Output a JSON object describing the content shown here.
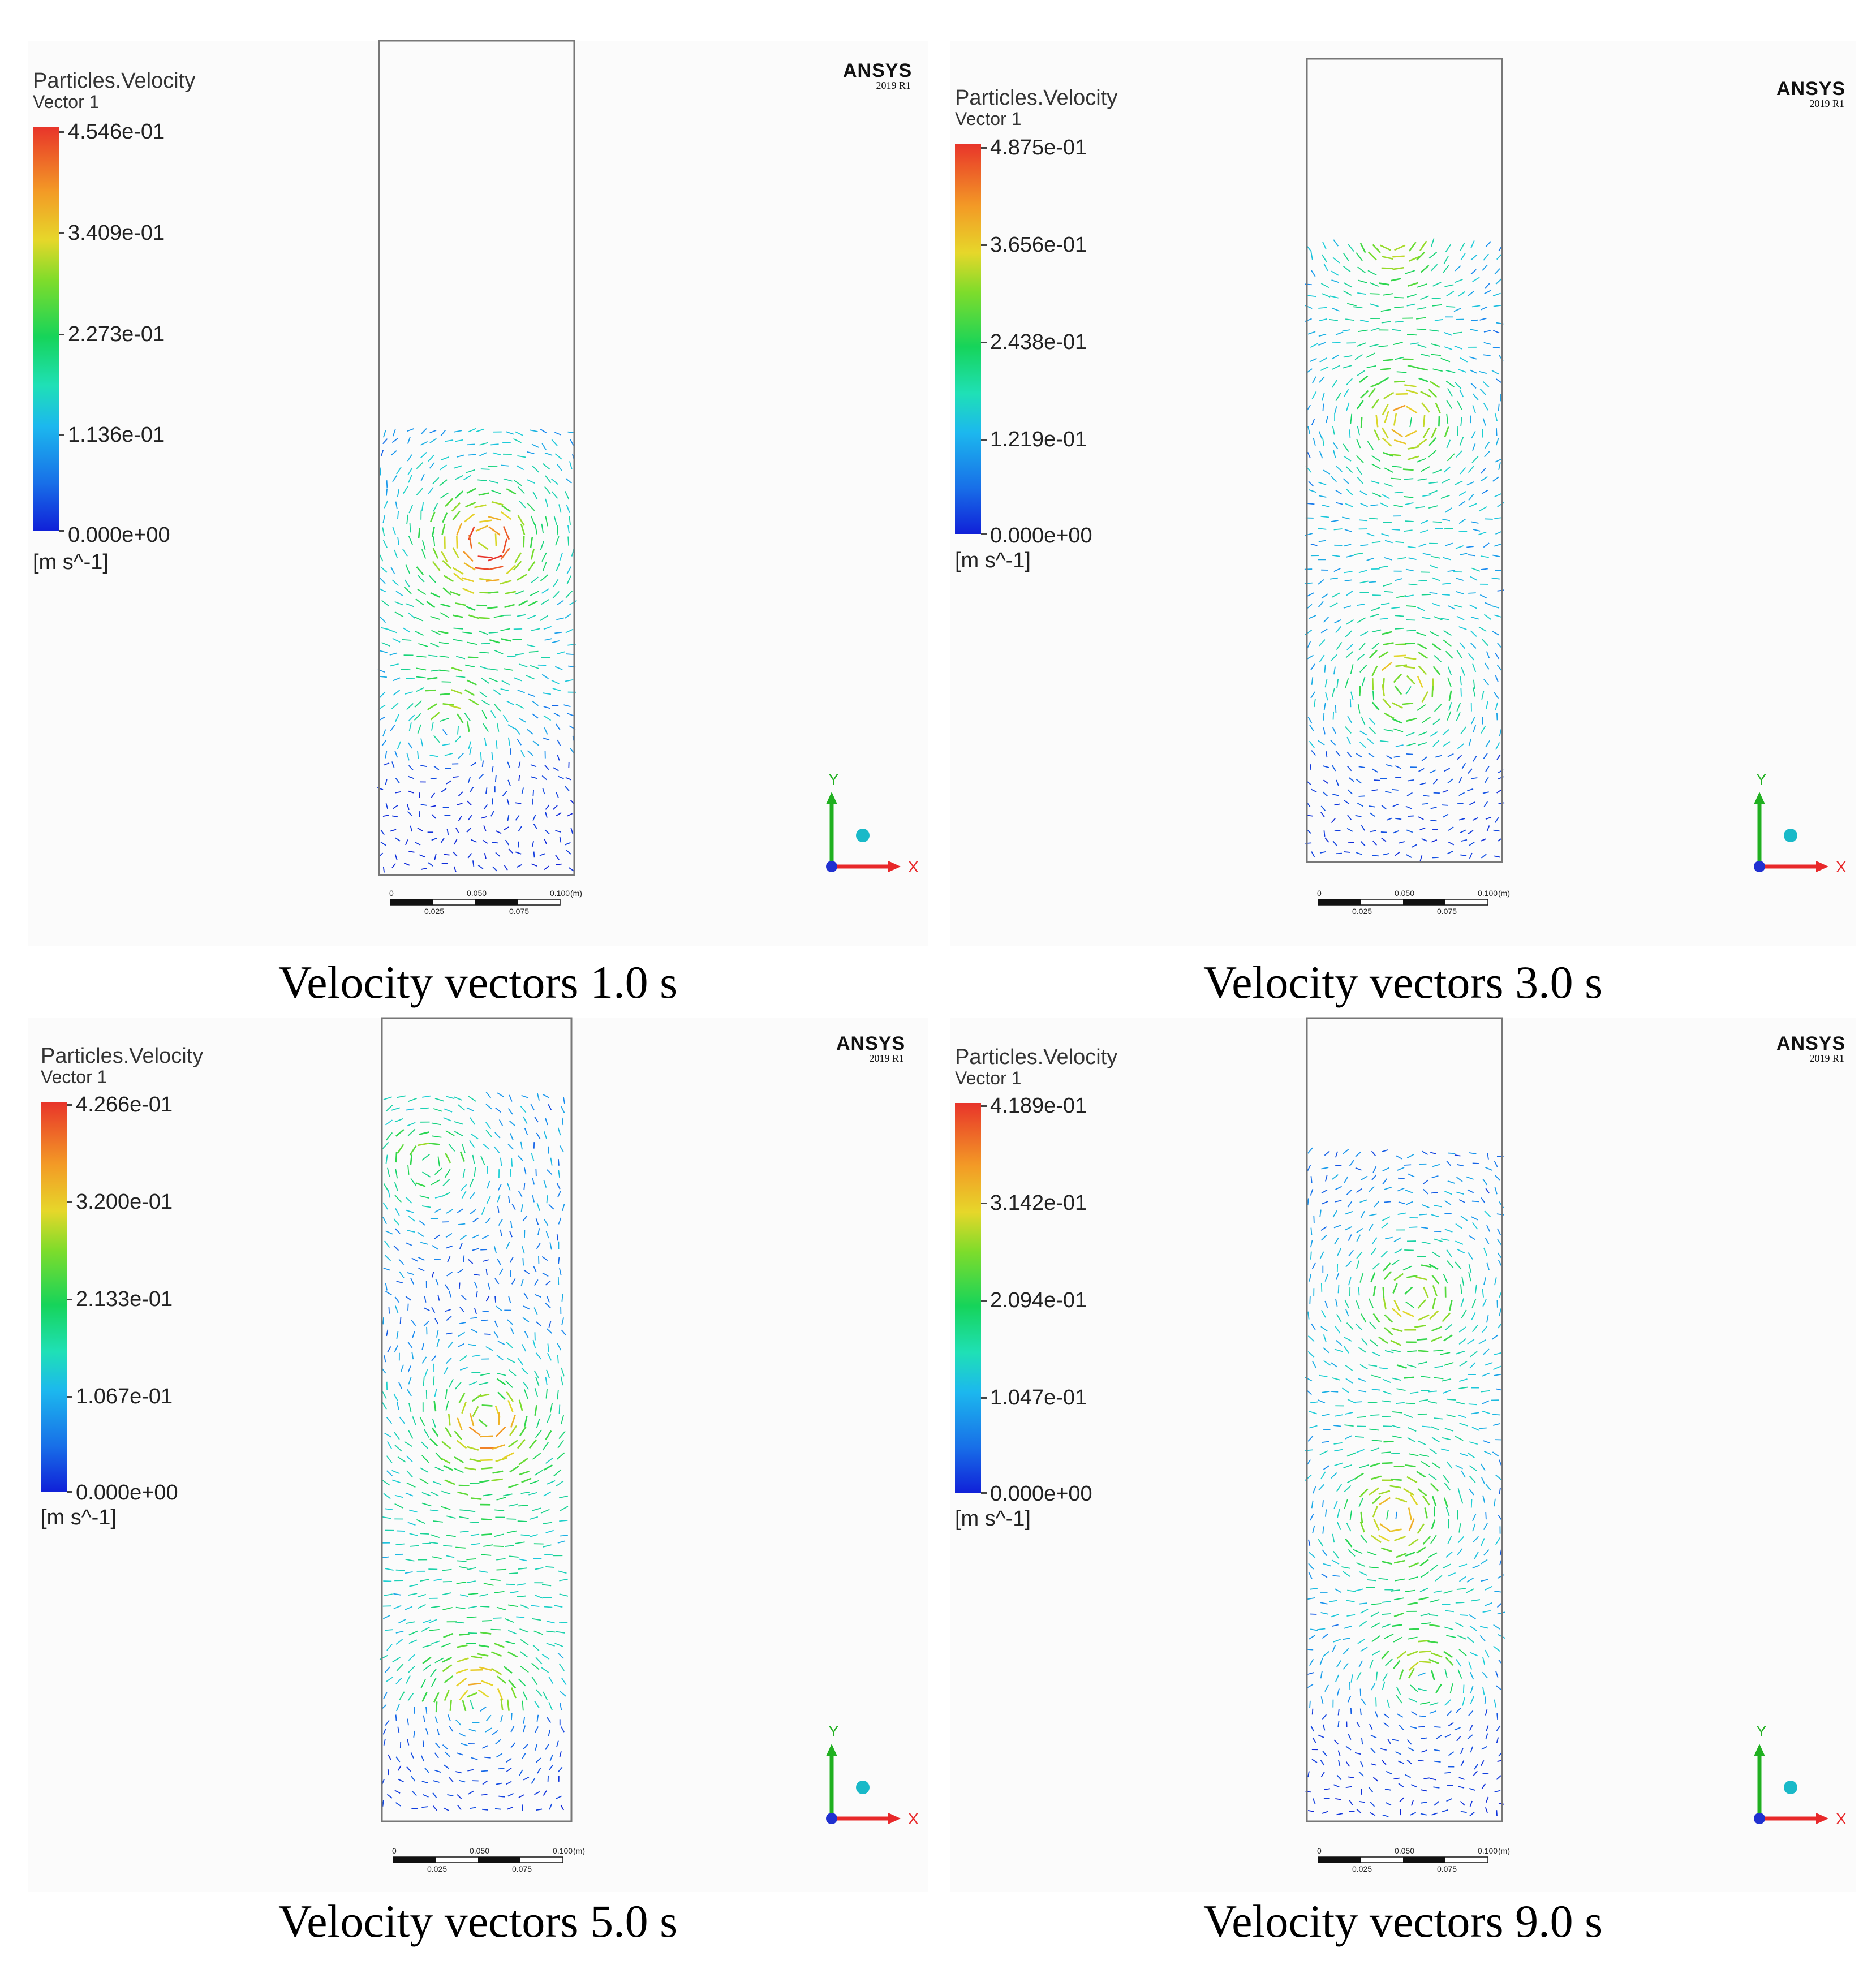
{
  "panels": [
    {
      "legend_title": "Particles.Velocity",
      "legend_sub": "Vector 1",
      "ticks": [
        "4.546e-01",
        "3.409e-01",
        "2.273e-01",
        "1.136e-01",
        "0.000e+00"
      ],
      "unit": "[m s^-1]",
      "brand": "ANSYS",
      "version": "2019 R1",
      "caption": "Velocity vectors 1.0 s",
      "scale": {
        "t0": "0",
        "t1": "0.050",
        "t2": "0.100",
        "unit": "(m)",
        "b1": "0.025",
        "b2": "0.075"
      },
      "axis": {
        "y": "Y",
        "x": "X"
      }
    },
    {
      "legend_title": "Particles.Velocity",
      "legend_sub": "Vector 1",
      "ticks": [
        "4.875e-01",
        "3.656e-01",
        "2.438e-01",
        "1.219e-01",
        "0.000e+00"
      ],
      "unit": "[m s^-1]",
      "brand": "ANSYS",
      "version": "2019 R1",
      "caption": "Velocity vectors 3.0 s",
      "scale": {
        "t0": "0",
        "t1": "0.050",
        "t2": "0.100",
        "unit": "(m)",
        "b1": "0.025",
        "b2": "0.075"
      },
      "axis": {
        "y": "Y",
        "x": "X"
      }
    },
    {
      "legend_title": "Particles.Velocity",
      "legend_sub": "Vector 1",
      "ticks": [
        "4.266e-01",
        "3.200e-01",
        "2.133e-01",
        "1.067e-01",
        "0.000e+00"
      ],
      "unit": "[m s^-1]",
      "brand": "ANSYS",
      "version": "2019 R1",
      "caption": "Velocity vectors 5.0 s",
      "scale": {
        "t0": "0",
        "t1": "0.050",
        "t2": "0.100",
        "unit": "(m)",
        "b1": "0.025",
        "b2": "0.075"
      },
      "axis": {
        "y": "Y",
        "x": "X"
      }
    },
    {
      "legend_title": "Particles.Velocity",
      "legend_sub": "Vector 1",
      "ticks": [
        "4.189e-01",
        "3.142e-01",
        "2.094e-01",
        "1.047e-01",
        "0.000e+00"
      ],
      "unit": "[m s^-1]",
      "brand": "ANSYS",
      "version": "2019 R1",
      "caption": "Velocity vectors 9.0 s",
      "scale": {
        "t0": "0",
        "t1": "0.050",
        "t2": "0.100",
        "unit": "(m)",
        "b1": "0.025",
        "b2": "0.075"
      },
      "axis": {
        "y": "Y",
        "x": "X"
      }
    }
  ],
  "colors": {
    "high": "#e8342a",
    "mid_high": "#e6d72a",
    "mid": "#16d45a",
    "low": "#1fd0d8",
    "zero": "#1020d8",
    "axis_x": "#e8282a",
    "axis_y": "#20b020",
    "axis_z": "#2030d0",
    "origin_ball": "#19b9c8"
  }
}
